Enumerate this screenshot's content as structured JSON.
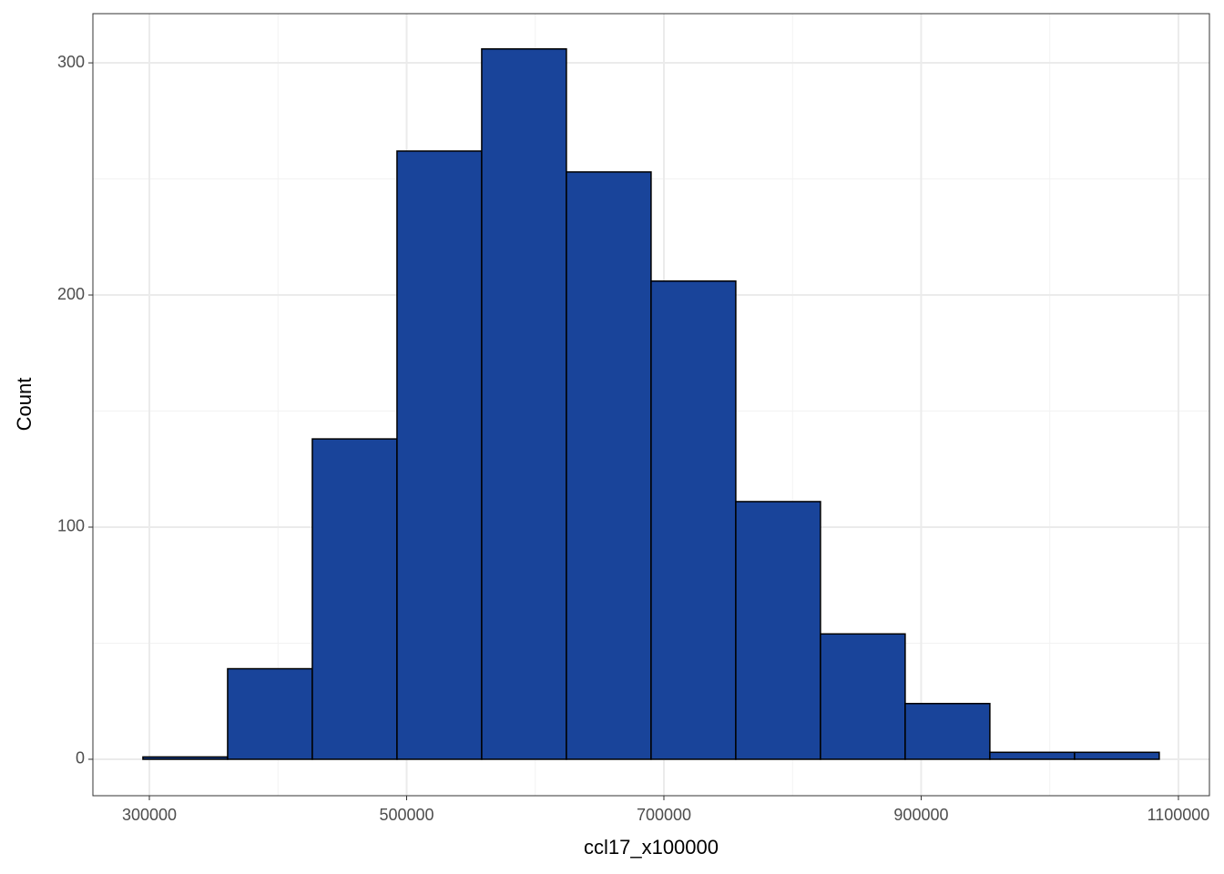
{
  "chart_data": {
    "type": "histogram",
    "x_label": "ccl17_x100000",
    "y_label": "Count",
    "bins": [
      295000,
      360840,
      426680,
      492520,
      558360,
      624200,
      690040,
      755880,
      821720,
      887560,
      953400,
      1019240,
      1085080
    ],
    "values": [
      1,
      39,
      138,
      262,
      306,
      253,
      206,
      111,
      54,
      24,
      3,
      3
    ],
    "color": "#19449a",
    "edgecolor": "#000000",
    "xlim": [
      256100,
      1124100
    ],
    "ylim": [
      -15.7,
      321.2
    ],
    "xticks": [
      300000,
      500000,
      700000,
      900000,
      1100000
    ],
    "yticks": [
      0,
      100,
      200,
      300
    ],
    "grid": true
  }
}
